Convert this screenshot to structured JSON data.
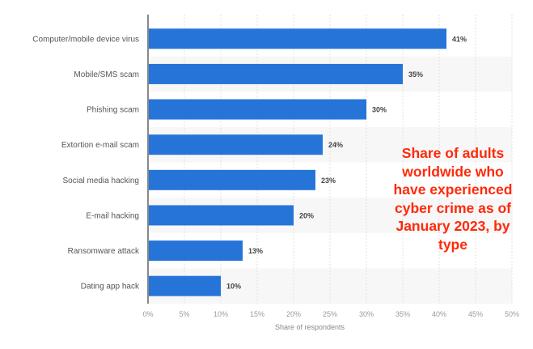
{
  "chart_data": {
    "type": "bar",
    "orientation": "horizontal",
    "categories": [
      "Computer/mobile device virus",
      "Mobile/SMS scam",
      "Phishing scam",
      "Extortion e-mail scam",
      "Social media hacking",
      "E-mail hacking",
      "Ransomware attack",
      "Dating app hack"
    ],
    "values": [
      41,
      35,
      30,
      24,
      23,
      20,
      13,
      10
    ],
    "value_labels": [
      "41%",
      "35%",
      "30%",
      "24%",
      "23%",
      "20%",
      "13%",
      "10%"
    ],
    "xlabel": "Share of respondents",
    "ylabel": "",
    "xlim": [
      0,
      50
    ],
    "xticks": [
      "0%",
      "5%",
      "10%",
      "15%",
      "20%",
      "25%",
      "30%",
      "35%",
      "40%",
      "45%",
      "50%"
    ],
    "grid": true,
    "bar_color": "#2774d9",
    "annotation": "Share of adults worldwide who have experienced cyber crime as of January 2023, by type",
    "annotation_color": "#fe2a0a"
  }
}
